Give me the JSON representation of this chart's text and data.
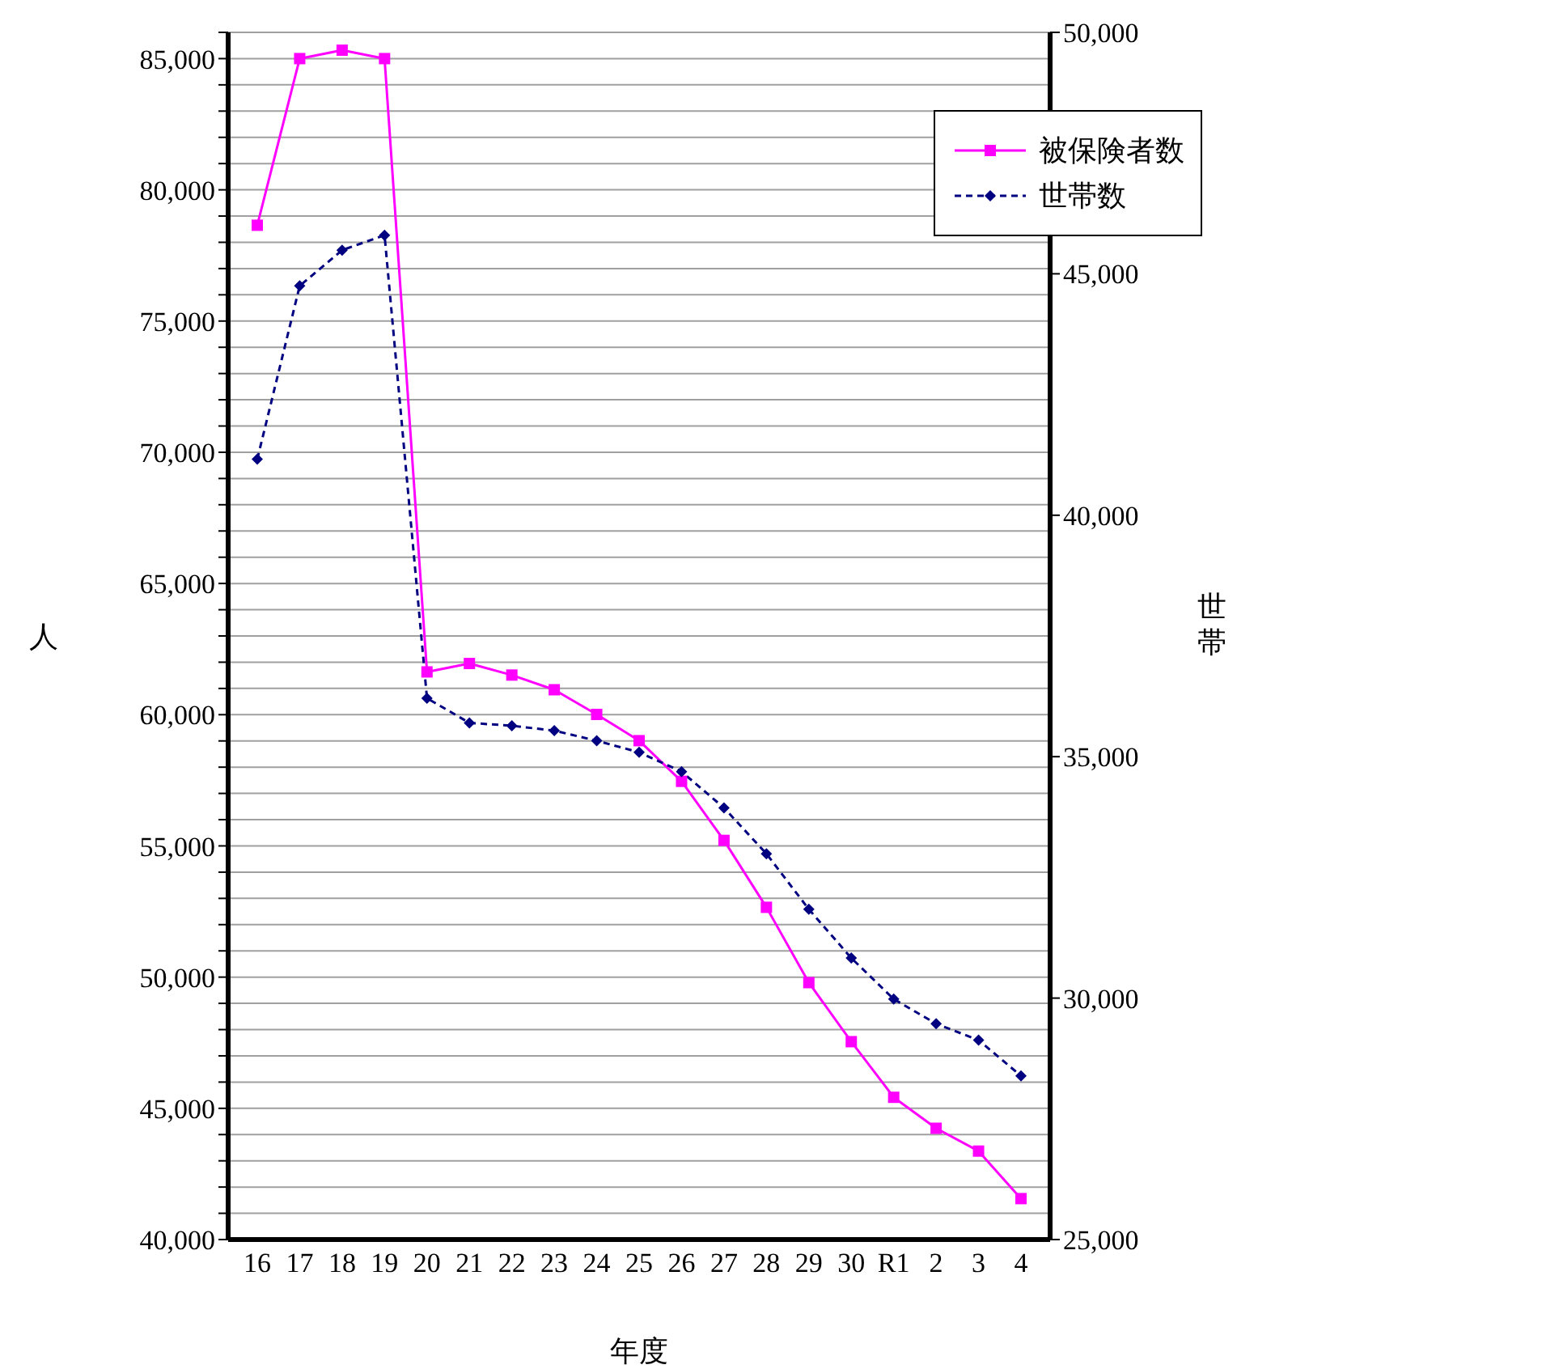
{
  "chart_data": {
    "type": "line",
    "xlabel": "年度",
    "ylabel": "人",
    "y2label": "世帯",
    "categories": [
      "16",
      "17",
      "18",
      "19",
      "20",
      "21",
      "22",
      "23",
      "24",
      "25",
      "26",
      "27",
      "28",
      "29",
      "30",
      "R1",
      "2",
      "3",
      "4"
    ],
    "series": [
      {
        "name": "被保険者数",
        "color": "#ff00ff",
        "marker": "square",
        "line_style": "solid",
        "values": [
          78650,
          85000,
          85320,
          85000,
          61630,
          61950,
          61510,
          60950,
          60010,
          59010,
          57460,
          55210,
          52660,
          49790,
          47540,
          45420,
          44240,
          43370,
          41560
        ]
      },
      {
        "name": "世帯数",
        "color": "#000080",
        "marker": "diamond",
        "line_style": "dashed",
        "axis": "y2",
        "values": [
          41160,
          44750,
          45490,
          45800,
          36210,
          35700,
          35640,
          35540,
          35330,
          35090,
          34690,
          33940,
          32990,
          31840,
          30830,
          29980,
          29470,
          29130,
          28390
        ]
      }
    ],
    "ylim": [
      40000,
      86000
    ],
    "yticks": [
      {
        "value": 40000,
        "label": "40,000"
      },
      {
        "value": 41000,
        "label": null
      },
      {
        "value": 42000,
        "label": null
      },
      {
        "value": 43000,
        "label": null
      },
      {
        "value": 44000,
        "label": null
      },
      {
        "value": 45000,
        "label": "45,000"
      },
      {
        "value": 46000,
        "label": null
      },
      {
        "value": 47000,
        "label": null
      },
      {
        "value": 48000,
        "label": null
      },
      {
        "value": 49000,
        "label": null
      },
      {
        "value": 50000,
        "label": "50,000"
      },
      {
        "value": 51000,
        "label": null
      },
      {
        "value": 52000,
        "label": null
      },
      {
        "value": 53000,
        "label": null
      },
      {
        "value": 54000,
        "label": null
      },
      {
        "value": 55000,
        "label": "55,000"
      },
      {
        "value": 56000,
        "label": null
      },
      {
        "value": 57000,
        "label": null
      },
      {
        "value": 58000,
        "label": null
      },
      {
        "value": 59000,
        "label": null
      },
      {
        "value": 60000,
        "label": "60,000"
      },
      {
        "value": 61000,
        "label": null
      },
      {
        "value": 62000,
        "label": null
      },
      {
        "value": 63000,
        "label": null
      },
      {
        "value": 64000,
        "label": null
      },
      {
        "value": 65000,
        "label": "65,000"
      },
      {
        "value": 66000,
        "label": null
      },
      {
        "value": 67000,
        "label": null
      },
      {
        "value": 68000,
        "label": null
      },
      {
        "value": 69000,
        "label": null
      },
      {
        "value": 70000,
        "label": "70,000"
      },
      {
        "value": 71000,
        "label": null
      },
      {
        "value": 72000,
        "label": null
      },
      {
        "value": 73000,
        "label": null
      },
      {
        "value": 74000,
        "label": null
      },
      {
        "value": 75000,
        "label": "75,000"
      },
      {
        "value": 76000,
        "label": null
      },
      {
        "value": 77000,
        "label": null
      },
      {
        "value": 78000,
        "label": null
      },
      {
        "value": 79000,
        "label": null
      },
      {
        "value": 80000,
        "label": "80,000"
      },
      {
        "value": 81000,
        "label": null
      },
      {
        "value": 82000,
        "label": null
      },
      {
        "value": 83000,
        "label": null
      },
      {
        "value": 84000,
        "label": null
      },
      {
        "value": 85000,
        "label": "85,000"
      },
      {
        "value": 86000,
        "label": null
      }
    ],
    "y2lim": [
      25000,
      50000
    ],
    "y2ticks": [
      {
        "value": 25000,
        "label": "25,000"
      },
      {
        "value": 30000,
        "label": "30,000"
      },
      {
        "value": 35000,
        "label": "35,000"
      },
      {
        "value": 40000,
        "label": "40,000"
      },
      {
        "value": 45000,
        "label": "45,000"
      },
      {
        "value": 50000,
        "label": "50,000"
      }
    ],
    "grid": "y",
    "legend": "top right"
  }
}
